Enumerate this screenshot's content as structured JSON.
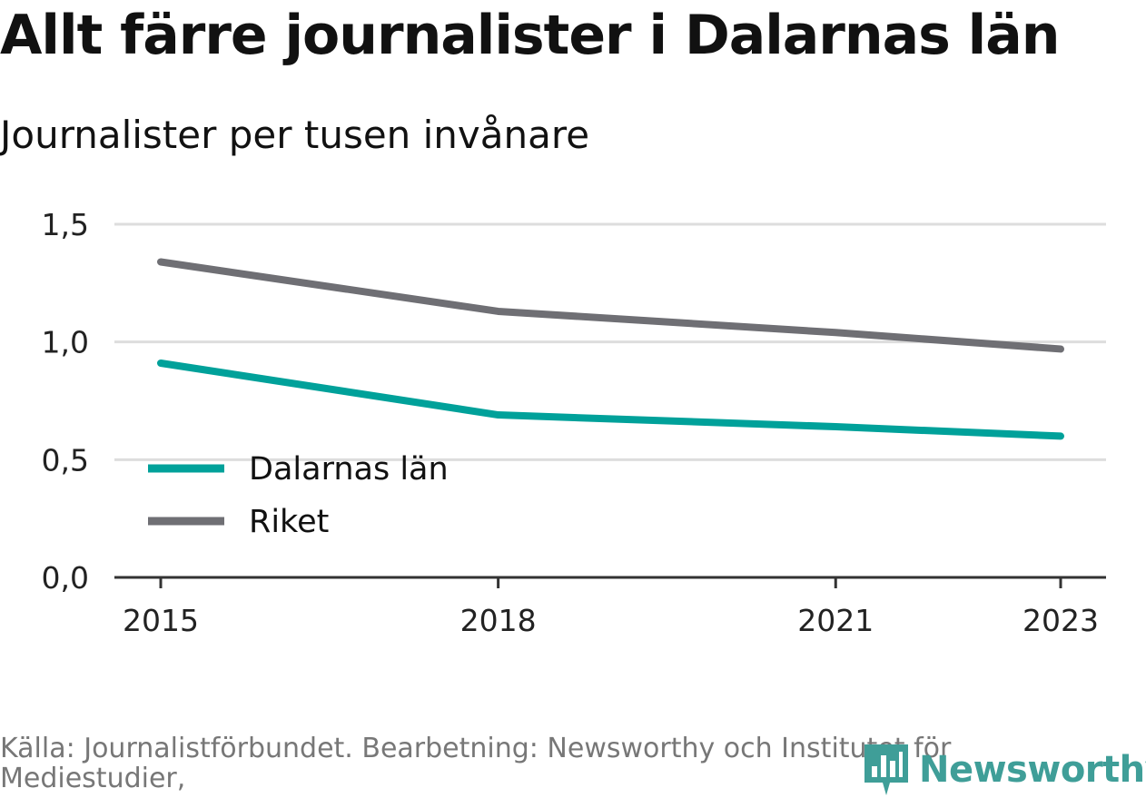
{
  "header": {
    "title": "Allt färre journalister i Dalarnas län",
    "subtitle": "Journalister per tusen invånare"
  },
  "footer": {
    "source": "Källa: Journalistförbundet. Bearbetning: Newsworthy och Institutet för Mediestudier,",
    "logo_text": "Newsworthy"
  },
  "colors": {
    "dalarnas": "#00a19a",
    "riket": "#6f6f74",
    "grid": "#dddddd",
    "axis": "#333333",
    "logo": "#3f9e98"
  },
  "chart_data": {
    "type": "line",
    "title": "Allt färre journalister i Dalarnas län",
    "subtitle": "Journalister per tusen invånare",
    "x": [
      2015,
      2018,
      2021,
      2023
    ],
    "x_tick_labels": [
      "2015",
      "2018",
      "2021",
      "2023"
    ],
    "xlim": [
      2015,
      2023
    ],
    "ylim": [
      0,
      1.5
    ],
    "y_ticks": [
      0,
      0.5,
      1.0,
      1.5
    ],
    "y_tick_labels": [
      "0,0",
      "0,5",
      "1,0",
      "1,5"
    ],
    "grid": true,
    "legend_position": "bottom-left",
    "series": [
      {
        "name": "Dalarnas län",
        "color": "#00a19a",
        "x": [
          2015,
          2018,
          2021,
          2023
        ],
        "values": [
          0.91,
          0.69,
          0.64,
          0.6
        ]
      },
      {
        "name": "Riket",
        "color": "#6f6f74",
        "x": [
          2015,
          2018,
          2021,
          2023
        ],
        "values": [
          1.34,
          1.13,
          1.04,
          0.97
        ]
      }
    ]
  }
}
